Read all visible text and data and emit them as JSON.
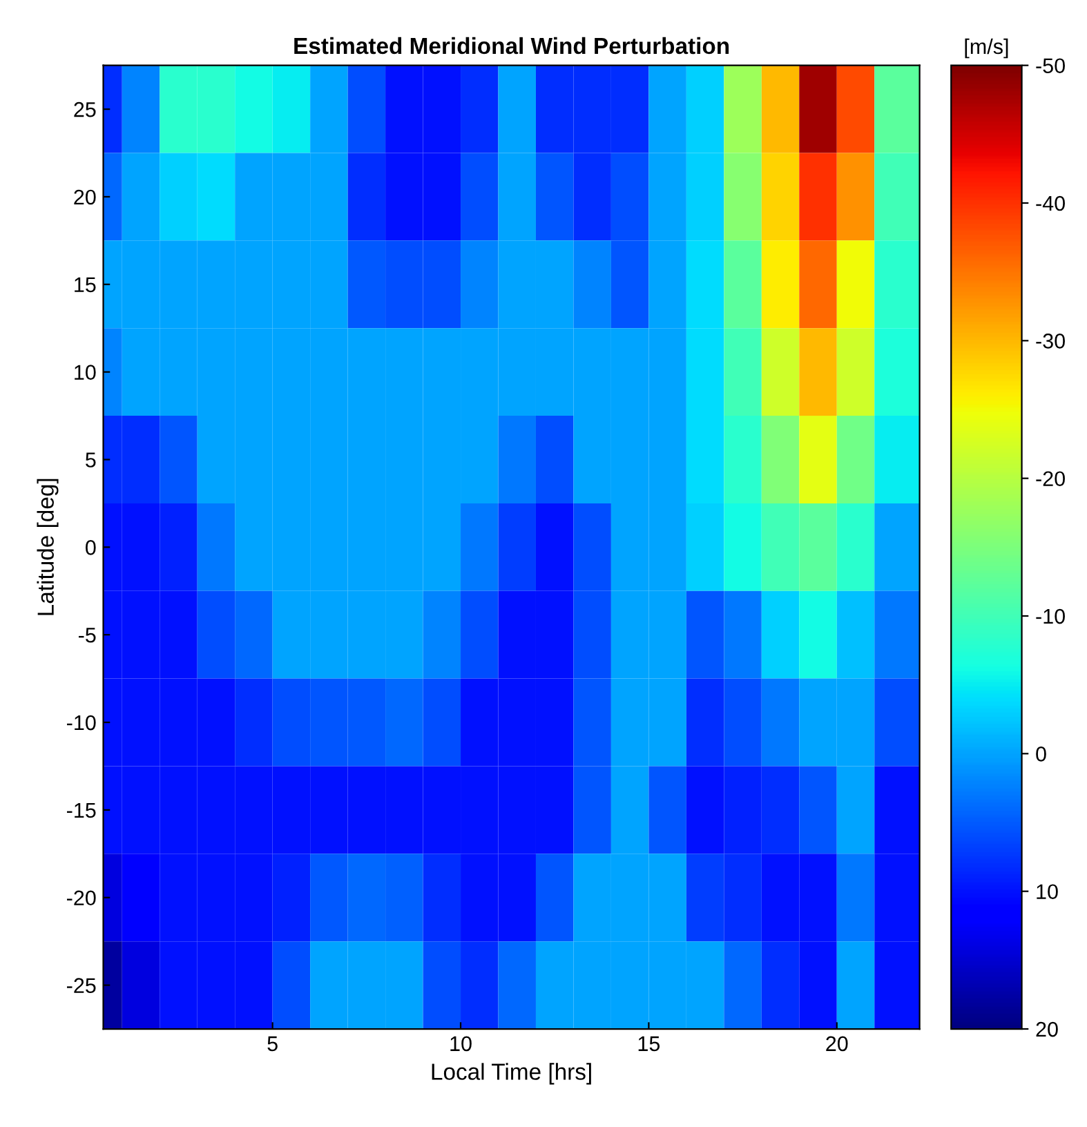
{
  "chart_data": {
    "type": "heatmap",
    "title": "Estimated Meridional Wind Perturbation",
    "xlabel": "Local Time [hrs]",
    "ylabel": "Latitude [deg]",
    "clabel": "[m/s]",
    "x": [
      0.5,
      1.5,
      2.5,
      3.5,
      4.5,
      5.5,
      6.5,
      7.5,
      8.5,
      9.5,
      10.5,
      11.5,
      12.5,
      13.5,
      14.5,
      15.5,
      16.5,
      17.5,
      18.5,
      19.5,
      20.5,
      21.5
    ],
    "y_categories": [
      "25",
      "20",
      "15",
      "10",
      "5",
      "0",
      "-5",
      "-10",
      "-15",
      "-20",
      "-25"
    ],
    "cells": [
      [
        8,
        2,
        -8,
        -8,
        -6,
        -5,
        0,
        6,
        10,
        10,
        8,
        0,
        8,
        8,
        8,
        0,
        -3,
        -18,
        -30,
        -48,
        -38,
        -12
      ],
      [
        4,
        0,
        -3,
        -4,
        0,
        0,
        0,
        8,
        10,
        10,
        6,
        0,
        5.5,
        8,
        6,
        0,
        -3,
        -16,
        -28,
        -40,
        -33,
        -10
      ],
      [
        0,
        0,
        0,
        0,
        0,
        0,
        0,
        5,
        6,
        6,
        2,
        0,
        0,
        2,
        5.5,
        0,
        -4,
        -12,
        -26,
        -36,
        -25,
        -8
      ],
      [
        2,
        0,
        0,
        0,
        0,
        0,
        0,
        0,
        0,
        0,
        0,
        0,
        0,
        0,
        0,
        0,
        -4,
        -10,
        -22,
        -30,
        -22,
        -7
      ],
      [
        8,
        8,
        5.5,
        0,
        0,
        0,
        0,
        0,
        0,
        0,
        0,
        3,
        6,
        0,
        0,
        0,
        -4,
        -8,
        -15.5,
        -24,
        -14,
        -5
      ],
      [
        10,
        10,
        9,
        3,
        0,
        0,
        0,
        0,
        0,
        0,
        3,
        7,
        10,
        6,
        0,
        0,
        -3,
        -6,
        -10,
        -12,
        -8,
        0
      ],
      [
        10,
        10,
        10,
        6,
        4,
        0,
        0,
        0,
        0,
        2,
        6,
        10,
        10,
        6,
        0,
        0,
        5.5,
        3,
        -3,
        -6,
        -2,
        3
      ],
      [
        10,
        10,
        10,
        10,
        8,
        6,
        5.5,
        5.2,
        4,
        6,
        10,
        10,
        10,
        5.5,
        0,
        0,
        8,
        6,
        3,
        0,
        0,
        6
      ],
      [
        10,
        10,
        10,
        10,
        10,
        10,
        10,
        10,
        10,
        10,
        10,
        10,
        10,
        5.5,
        0,
        5.5,
        10,
        9,
        8,
        5.5,
        0,
        10
      ],
      [
        14,
        12,
        10,
        10,
        10,
        9,
        5,
        4,
        4.5,
        8,
        10,
        10,
        5.5,
        0,
        0,
        0,
        7,
        8,
        10,
        10,
        3,
        10
      ],
      [
        18,
        14,
        10,
        10,
        10,
        6,
        0,
        0,
        0,
        6,
        8,
        4,
        0,
        0,
        0,
        0,
        0,
        4,
        8,
        10,
        0,
        10
      ]
    ],
    "xlim": [
      0.5,
      22.2
    ],
    "xticks": [
      5,
      10,
      15,
      20
    ],
    "clim": [
      20,
      -50
    ],
    "cticks": [
      20,
      10,
      0,
      -10,
      -20,
      -30,
      -40,
      -50
    ]
  }
}
